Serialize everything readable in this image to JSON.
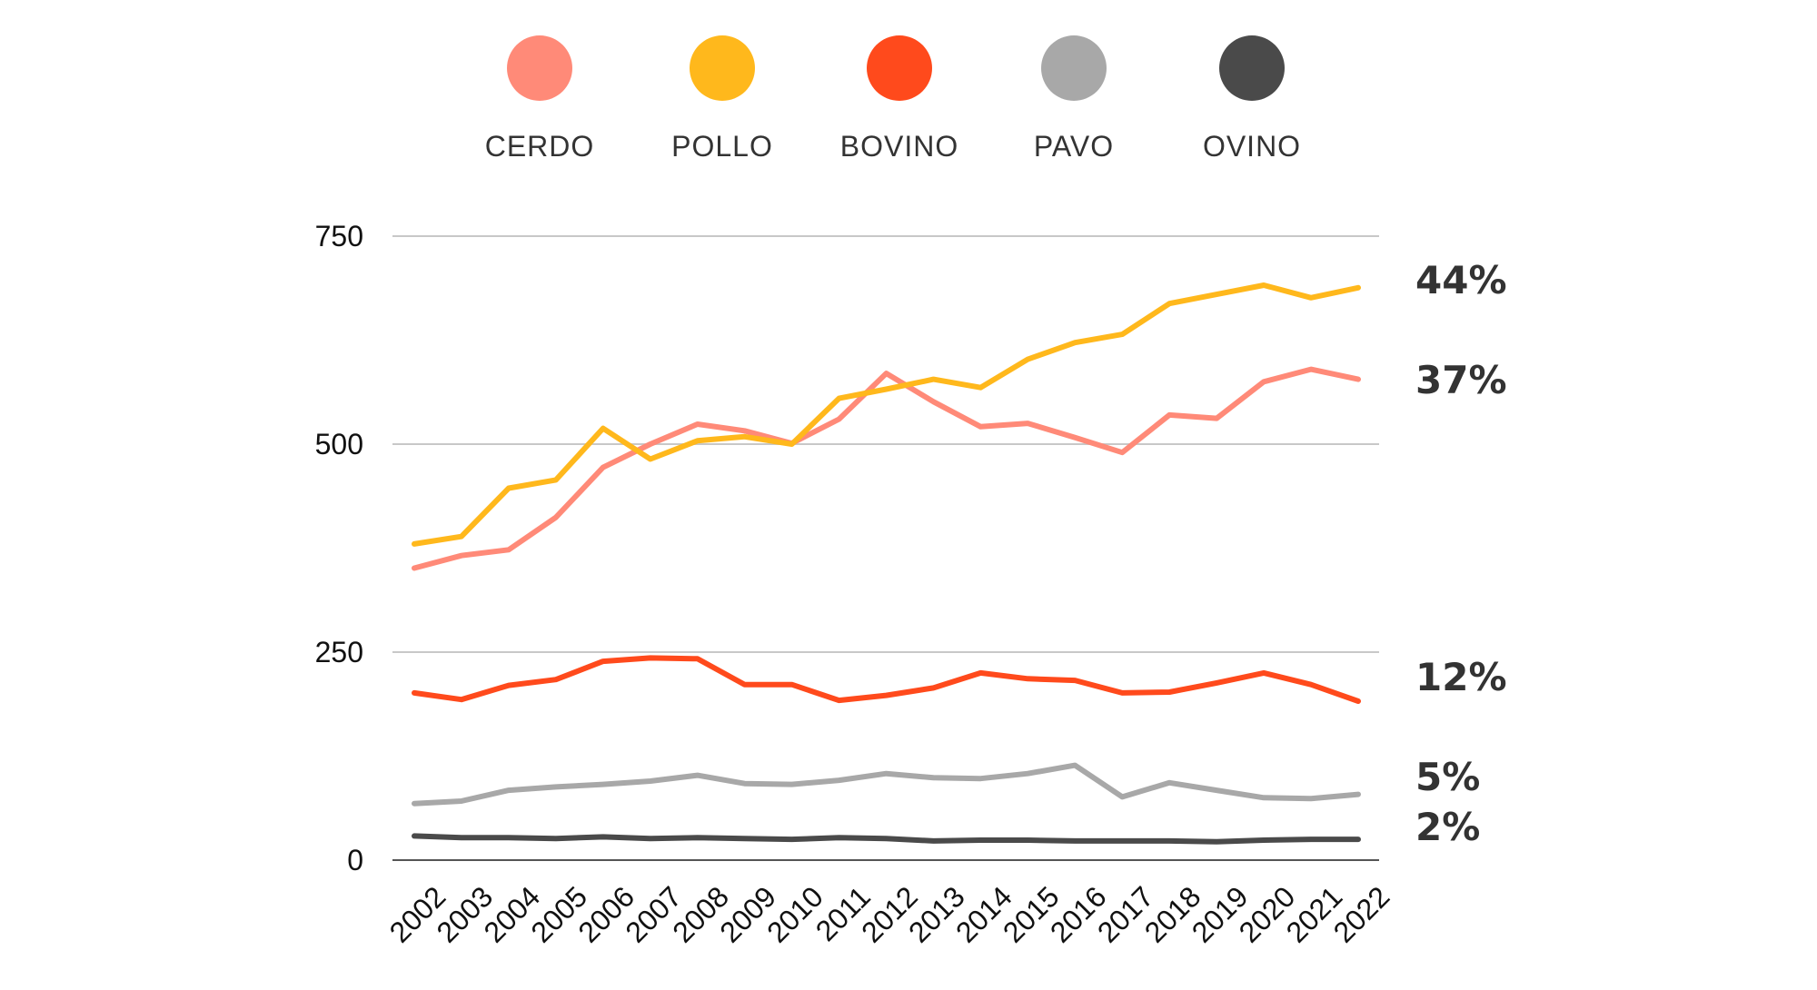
{
  "chart_data": {
    "type": "line",
    "x": [
      "2002",
      "2003",
      "2004",
      "2005",
      "2006",
      "2007",
      "2008",
      "2009",
      "2010",
      "2011",
      "2012",
      "2013",
      "2014",
      "2015",
      "2016",
      "2017",
      "2018",
      "2019",
      "2020",
      "2021",
      "2022"
    ],
    "ylim": [
      0,
      750
    ],
    "yticks": [
      "750",
      "500",
      "250",
      "0"
    ],
    "grid": true,
    "legend_position": "top",
    "series": [
      {
        "name": "CERDO",
        "color": "#ff8a78",
        "share": "37%",
        "values": [
          351,
          366,
          373,
          412,
          472,
          500,
          524,
          516,
          501,
          530,
          585,
          551,
          521,
          525,
          508,
          490,
          535,
          531,
          575,
          590,
          578
        ]
      },
      {
        "name": "POLLO",
        "color": "#ffb81c",
        "share": "44%",
        "values": [
          380,
          389,
          447,
          457,
          519,
          482,
          504,
          509,
          500,
          555,
          566,
          578,
          568,
          602,
          622,
          632,
          669,
          680,
          691,
          676,
          688
        ]
      },
      {
        "name": "BOVINO",
        "color": "#ff4a1c",
        "share": "12%",
        "values": [
          201,
          193,
          210,
          217,
          239,
          243,
          242,
          211,
          211,
          192,
          198,
          207,
          225,
          218,
          216,
          201,
          202,
          213,
          225,
          211,
          191
        ]
      },
      {
        "name": "PAVO",
        "color": "#a8a8a8",
        "share": "5%",
        "values": [
          68,
          71,
          84,
          88,
          91,
          95,
          102,
          92,
          91,
          96,
          104,
          99,
          98,
          104,
          114,
          76,
          93,
          84,
          75,
          74,
          79
        ]
      },
      {
        "name": "OVINO",
        "color": "#4a4a4a",
        "share": "2%",
        "values": [
          29,
          27,
          27,
          26,
          28,
          26,
          27,
          26,
          25,
          27,
          26,
          23,
          24,
          24,
          23,
          23,
          23,
          22,
          24,
          25,
          25
        ]
      }
    ]
  }
}
